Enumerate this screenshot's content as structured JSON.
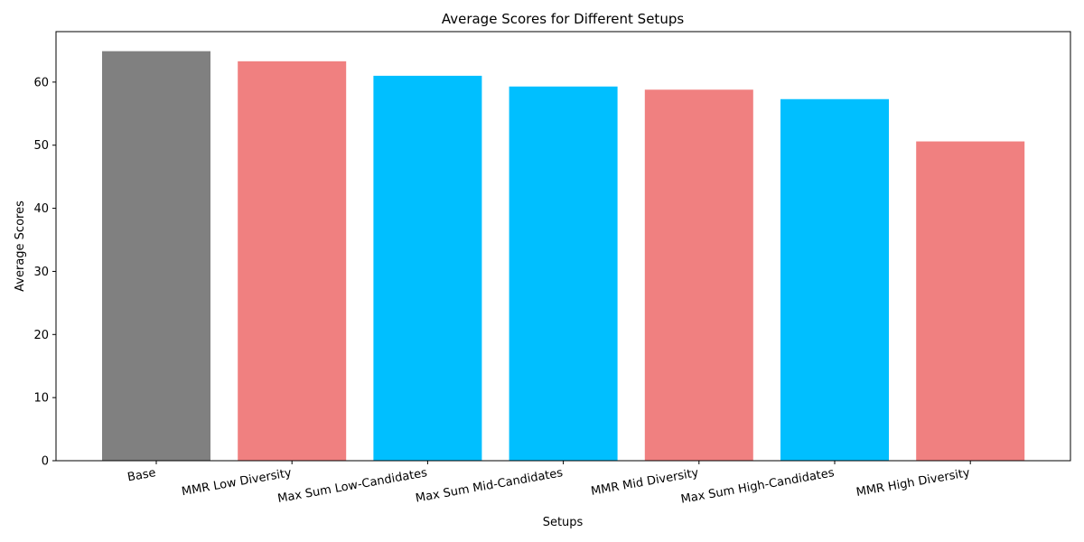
{
  "chart_data": {
    "type": "bar",
    "title": "Average Scores for Different Setups",
    "xlabel": "Setups",
    "ylabel": "Average Scores",
    "categories": [
      "Base",
      "MMR Low Diversity",
      "Max Sum Low-Candidates",
      "Max Sum Mid-Candidates",
      "MMR Mid Diversity",
      "Max Sum High-Candidates",
      "MMR High Diversity"
    ],
    "values": [
      64.9,
      63.3,
      61.0,
      59.3,
      58.8,
      57.3,
      50.6
    ],
    "colors": [
      "#808080",
      "#f08080",
      "#00bfff",
      "#00bfff",
      "#f08080",
      "#00bfff",
      "#f08080"
    ],
    "ylim": [
      0,
      68
    ],
    "yticks": [
      0,
      10,
      20,
      30,
      40,
      50,
      60
    ],
    "xtick_rotation": "rotated ~10 degrees",
    "grid": false,
    "legend": "none"
  }
}
